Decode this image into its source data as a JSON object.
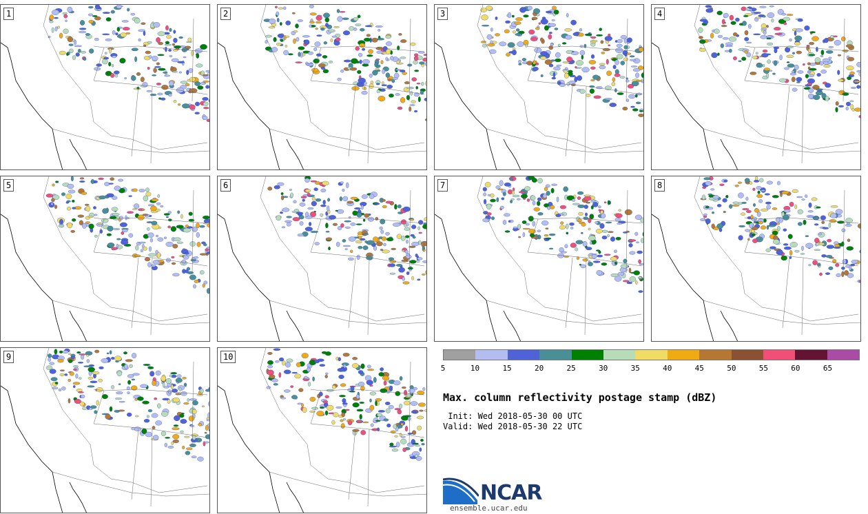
{
  "panels": [
    {
      "label": "1"
    },
    {
      "label": "2"
    },
    {
      "label": "3"
    },
    {
      "label": "4"
    },
    {
      "label": "5"
    },
    {
      "label": "6"
    },
    {
      "label": "7"
    },
    {
      "label": "8"
    },
    {
      "label": "9"
    },
    {
      "label": "10"
    }
  ],
  "colorbar": {
    "colors": [
      "#a0a0a0",
      "#b4bdf0",
      "#5062d8",
      "#4b8f96",
      "#008000",
      "#b8dcb8",
      "#f0dc64",
      "#f0aa14",
      "#b47832",
      "#8c5032",
      "#f05078",
      "#641432",
      "#aa4ba5"
    ],
    "ticks": [
      "5",
      "10",
      "15",
      "20",
      "25",
      "30",
      "35",
      "40",
      "45",
      "50",
      "55",
      "60",
      "65"
    ]
  },
  "title": "Max. column reflectivity postage stamp (dBZ)",
  "init_text": " Init: Wed 2018-05-30 00 UTC",
  "valid_text": "Valid: Wed 2018-05-30 22 UTC",
  "logo_text": "NCAR",
  "site": "ensemble.ucar.edu"
}
